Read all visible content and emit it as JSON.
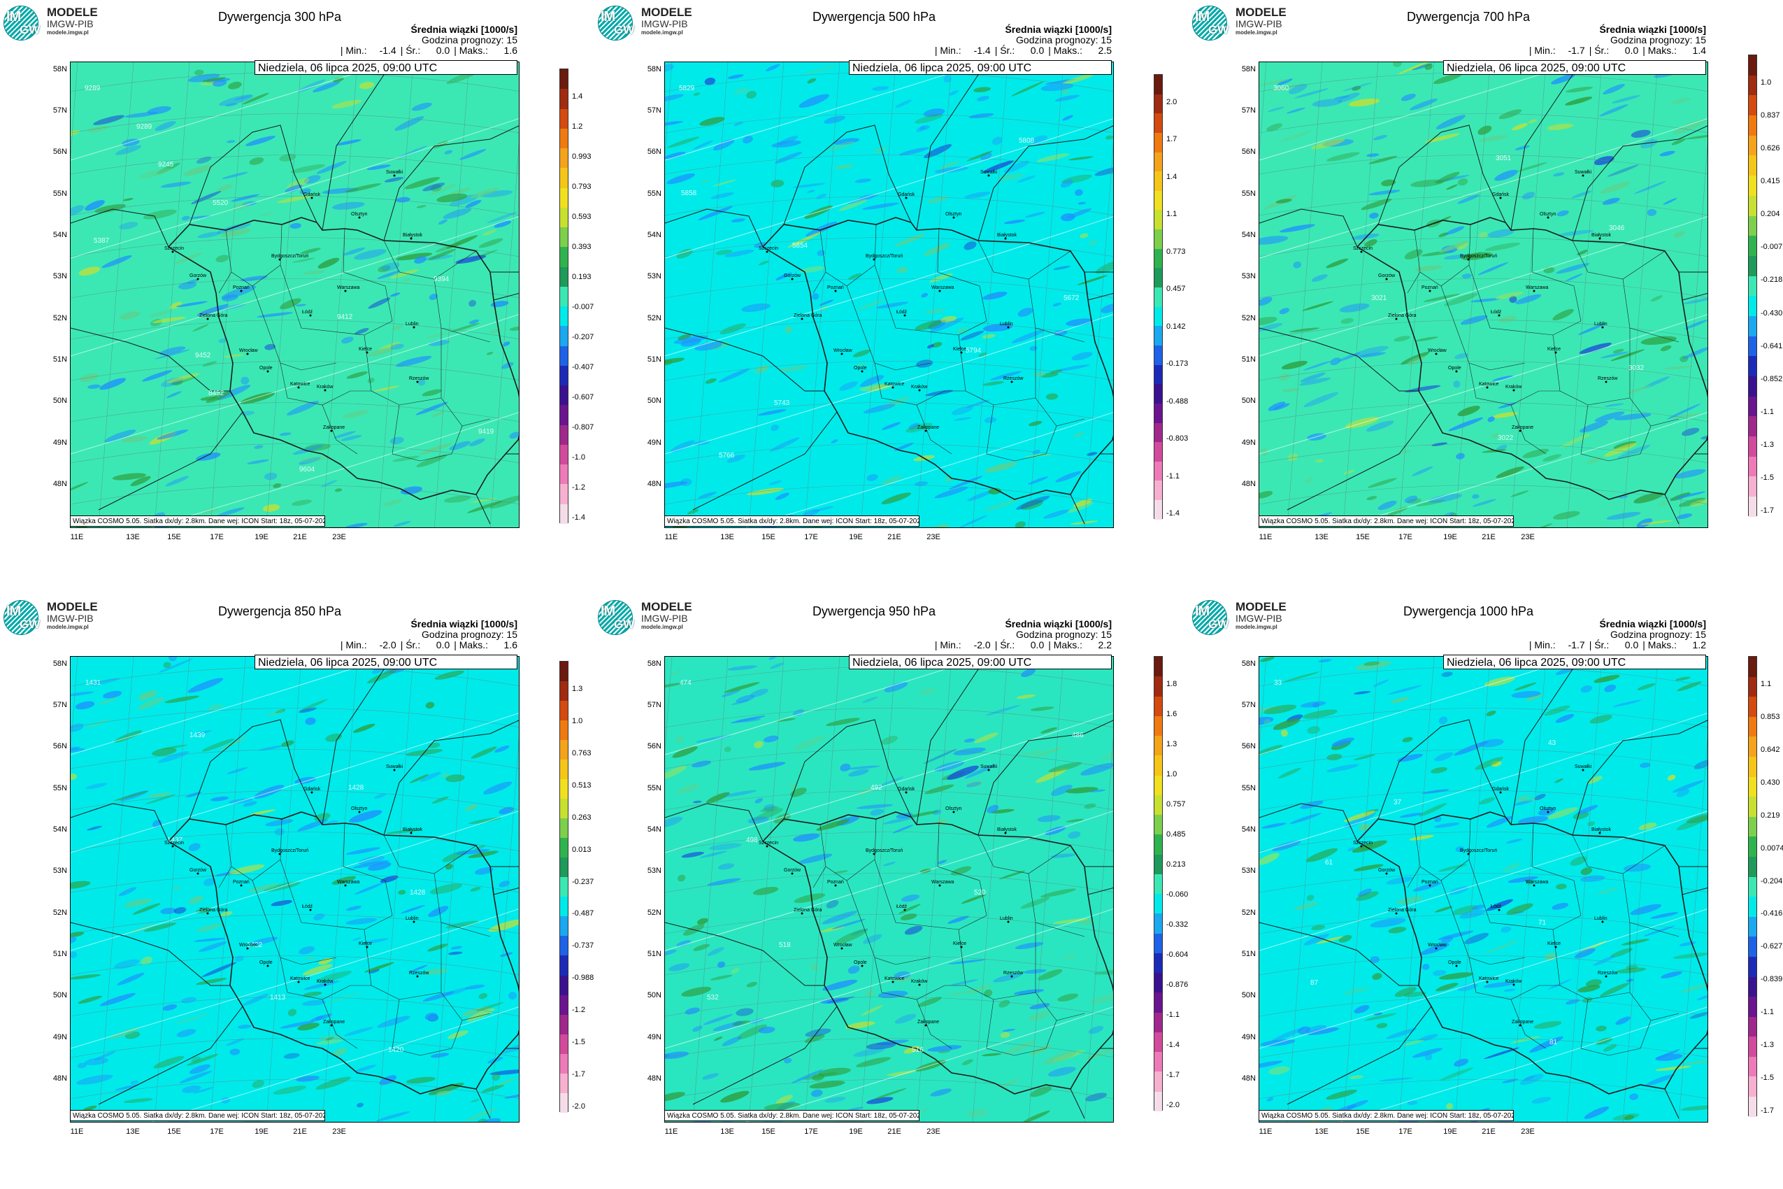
{
  "logo": {
    "line1": "MODELE",
    "line2": "IMGW-PIB",
    "line3": "modele.imgw.pl",
    "mark_top": "IM",
    "mark_bottom": "GW"
  },
  "colors": {
    "sea_bg": "#00eaea",
    "land_green": "#33e8b0",
    "low_blue": "#1e90ff",
    "high_green": "#2d9e3c"
  },
  "panels": [
    {
      "title": "Dywergencja 300 hPa",
      "subtitle": "Średnia wiązki [1000/s]",
      "forecast_hour": "Godzina prognozy: 15",
      "stats": {
        "min_label": "| Min.:",
        "min": "-1.4",
        "avg_label": "| Śr.:",
        "avg": "0.0",
        "max_label": "| Maks.:",
        "max": "1.6"
      },
      "date": "Niedziela, 06 lipca 2025, 09:00 UTC",
      "footer": "Wiązka COSMO 5.05. Siatka dx/dy: 2.8km. Dane wej: ICON Start: 18z, 05-07-2025",
      "dominant_color": "#3be8b4",
      "colorbar_labels": [
        "1.4",
        "1.2",
        "0.993",
        "0.793",
        "0.593",
        "0.393",
        "0.193",
        "-0.007",
        "-0.207",
        "-0.407",
        "-0.607",
        "-0.807",
        "-1.0",
        "-1.2",
        "-1.4"
      ],
      "contours": [
        "9289",
        "9289",
        "9245",
        "5520",
        "5387",
        "9394",
        "9412",
        "9452",
        "8452",
        "9419",
        "9604"
      ]
    },
    {
      "title": "Dywergencja 500 hPa",
      "subtitle": "Średnia wiązki [1000/s]",
      "forecast_hour": "Godzina prognozy: 15",
      "stats": {
        "min_label": "| Min.:",
        "min": "-1.4",
        "avg_label": "| Śr.:",
        "avg": "0.0",
        "max_label": "| Maks.:",
        "max": "2.5"
      },
      "date": "Niedziela, 06 lipca 2025, 09:00 UTC",
      "footer": "Wiązka COSMO 5.05. Siatka dx/dy: 2.8km. Dane wej: ICON Start: 18z, 05-07-2025",
      "dominant_color": "#00eaea",
      "colorbar_labels": [
        "2.0",
        "1.7",
        "1.4",
        "1.1",
        "0.773",
        "0.457",
        "0.142",
        "-0.173",
        "-0.488",
        "-0.803",
        "-1.1",
        "-1.4"
      ],
      "contours": [
        "5829",
        "5808",
        "5858",
        "5854",
        "5672",
        "5794",
        "5743",
        "5766"
      ]
    },
    {
      "title": "Dywergencja 700 hPa",
      "subtitle": "Średnia wiązki [1000/s]",
      "forecast_hour": "Godzina prognozy: 15",
      "stats": {
        "min_label": "| Min.:",
        "min": "-1.7",
        "avg_label": "| Śr.:",
        "avg": "0.0",
        "max_label": "| Maks.:",
        "max": "1.4"
      },
      "date": "Niedziela, 06 lipca 2025, 09:00 UTC",
      "footer": "Wiązka COSMO 5.05. Siatka dx/dy: 2.8km. Dane wej: ICON Start: 18z, 05-07-2025",
      "dominant_color": "#3be8b4",
      "colorbar_labels": [
        "1.0",
        "0.837",
        "0.626",
        "0.415",
        "0.204",
        "-0.007",
        "-0.218",
        "-0.430",
        "-0.641",
        "-0.852",
        "-1.1",
        "-1.3",
        "-1.5",
        "-1.7"
      ],
      "contours": [
        "3060",
        "3051",
        "3046",
        "3021",
        "3032",
        "3022"
      ]
    },
    {
      "title": "Dywergencja 850 hPa",
      "subtitle": "Średnia wiązki [1000/s]",
      "forecast_hour": "Godzina prognozy: 15",
      "stats": {
        "min_label": "| Min.:",
        "min": "-2.0",
        "avg_label": "| Śr.:",
        "avg": "0.0",
        "max_label": "| Maks.:",
        "max": "1.6"
      },
      "date": "Niedziela, 06 lipca 2025, 09:00 UTC",
      "footer": "Wiązka COSMO 5.05. Siatka dx/dy: 2.8km. Dane wej: ICON Start: 18z, 05-07-2025",
      "dominant_color": "#00eaea",
      "colorbar_labels": [
        "1.3",
        "1.0",
        "0.763",
        "0.513",
        "0.263",
        "0.013",
        "-0.237",
        "-0.487",
        "-0.737",
        "-0.988",
        "-1.2",
        "-1.5",
        "-1.7",
        "-2.0"
      ],
      "contours": [
        "1431",
        "1439",
        "1428",
        "1437",
        "1428",
        "1422",
        "1413",
        "1420"
      ]
    },
    {
      "title": "Dywergencja 950 hPa",
      "subtitle": "Średnia wiązki [1000/s]",
      "forecast_hour": "Godzina prognozy: 15",
      "stats": {
        "min_label": "| Min.:",
        "min": "-2.0",
        "avg_label": "| Śr.:",
        "avg": "0.0",
        "max_label": "| Maks.:",
        "max": "2.2"
      },
      "date": "Niedziela, 06 lipca 2025, 09:00 UTC",
      "footer": "Wiązka COSMO 5.05. Siatka dx/dy: 2.8km. Dane wej: ICON Start: 18z, 05-07-2025",
      "dominant_color": "#2ae6c0",
      "colorbar_labels": [
        "1.8",
        "1.6",
        "1.3",
        "1.0",
        "0.757",
        "0.485",
        "0.213",
        "-0.060",
        "-0.332",
        "-0.604",
        "-0.876",
        "-1.1",
        "-1.4",
        "-1.7",
        "-2.0"
      ],
      "contours": [
        "474",
        "486",
        "492",
        "498",
        "520",
        "518",
        "532",
        "516"
      ]
    },
    {
      "title": "Dywergencja 1000 hPa",
      "subtitle": "Średnia wiązki [1000/s]",
      "forecast_hour": "Godzina prognozy: 15",
      "stats": {
        "min_label": "| Min.:",
        "min": "-1.7",
        "avg_label": "| Śr.:",
        "avg": "0.0",
        "max_label": "| Maks.:",
        "max": "1.2"
      },
      "date": "Niedziela, 06 lipca 2025, 09:00 UTC",
      "footer": "Wiązka COSMO 5.05. Siatka dx/dy: 2.8km. Dane wej: ICON Start: 18z, 05-07-2025",
      "dominant_color": "#00eaea",
      "colorbar_labels": [
        "1.1",
        "0.853",
        "0.642",
        "0.430",
        "0.219",
        "0.0074",
        "-0.204",
        "-0.416",
        "-0.627",
        "-0.839",
        "-1.1",
        "-1.3",
        "-1.5",
        "-1.7"
      ],
      "contours": [
        "33",
        "43",
        "37",
        "61",
        "71",
        "87",
        "81"
      ]
    }
  ],
  "lat_labels": [
    "58N",
    "57N",
    "56N",
    "55N",
    "54N",
    "53N",
    "52N",
    "51N",
    "50N",
    "49N",
    "48N"
  ],
  "lon_labels": [
    "11E",
    "13E",
    "15E",
    "17E",
    "19E",
    "21E",
    "23E"
  ],
  "cities": [
    "Gdańsk",
    "Olsztyn",
    "Suwałki",
    "Białystok",
    "Szczecin",
    "Bydgoszcz/Toruń",
    "Gorzów",
    "Poznań",
    "Warszawa",
    "Łódź",
    "Zielona Góra",
    "Lublin",
    "Wrocław",
    "Kielce",
    "Opole",
    "Katowice",
    "Kraków",
    "Rzeszów",
    "Zakopane"
  ],
  "colorbar_colors": [
    "#6b1a0f",
    "#a02b10",
    "#d44a0f",
    "#f07a10",
    "#f5a31a",
    "#f5c518",
    "#f0e020",
    "#c8e030",
    "#7cd04c",
    "#2fb34f",
    "#1e9a5a",
    "#3be8b4",
    "#00eaea",
    "#1aa8f0",
    "#1e62e8",
    "#1c2ab8",
    "#3a1290",
    "#6a1490",
    "#a0288c",
    "#d24a9c",
    "#ee7ab8",
    "#f7b0d0",
    "#f4dde8"
  ]
}
